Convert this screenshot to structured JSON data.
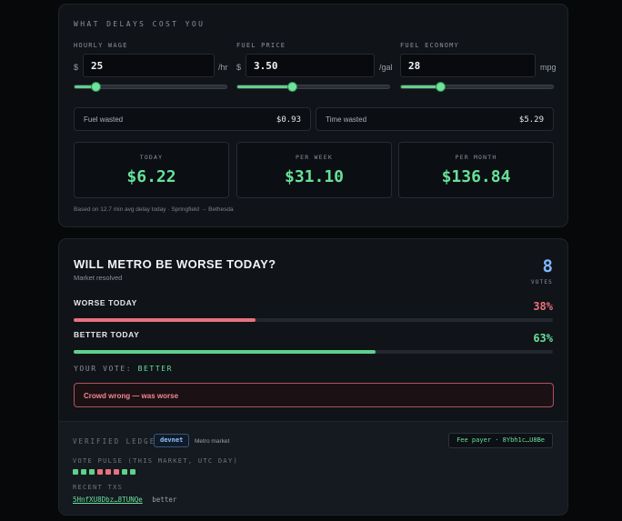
{
  "cost": {
    "title": "WHAT DELAYS COST YOU",
    "wage": {
      "label": "HOURLY WAGE",
      "prefix": "$",
      "value": "25",
      "unit": "/hr",
      "slider_fraction": 0.14
    },
    "fuel_price": {
      "label": "FUEL PRICE",
      "prefix": "$",
      "value": "3.50",
      "unit": "/gal",
      "slider_fraction": 0.36
    },
    "fuel_economy": {
      "label": "FUEL ECONOMY",
      "value": "28",
      "unit": "mpg",
      "slider_fraction": 0.26
    },
    "fuel_wasted": {
      "label": "Fuel wasted",
      "value": "$0.93"
    },
    "time_wasted": {
      "label": "Time wasted",
      "value": "$5.29"
    },
    "today": {
      "label": "TODAY",
      "value": "$6.22"
    },
    "week": {
      "label": "PER WEEK",
      "value": "$31.10"
    },
    "month": {
      "label": "PER MONTH",
      "value": "$136.84"
    },
    "note": "Based on 12.7 min avg delay today · Springfield → Bethesda"
  },
  "market": {
    "question": "WILL METRO BE WORSE TODAY?",
    "status": "Market resolved",
    "votes_count": "8",
    "votes_label": "VOTES",
    "worse": {
      "label": "WORSE TODAY",
      "pct": "38%",
      "fraction": 0.38,
      "color": "#e8727c"
    },
    "better": {
      "label": "BETTER TODAY",
      "pct": "63%",
      "fraction": 0.63,
      "color": "#5fd18a"
    },
    "your_vote_label": "YOUR VOTE:",
    "your_vote_value": "BETTER",
    "alert": "Crowd wrong — was worse"
  },
  "ledger": {
    "title": "VERIFIED LEDGER",
    "network": "devnet",
    "market_label": "Metro market",
    "fee_payer": "Fee payer · 8Ybh1c…U8Be",
    "pulse_title": "VOTE PULSE (THIS MARKET, UTC DAY)",
    "pulse": [
      "#5fd18a",
      "#5fd18a",
      "#5fd18a",
      "#e8727c",
      "#e8727c",
      "#e8727c",
      "#5fd18a",
      "#5fd18a"
    ],
    "recent_title": "RECENT TXS",
    "tx": {
      "hash": "5HnfXU8Dbz…8TUNQe",
      "vote": "better"
    }
  }
}
